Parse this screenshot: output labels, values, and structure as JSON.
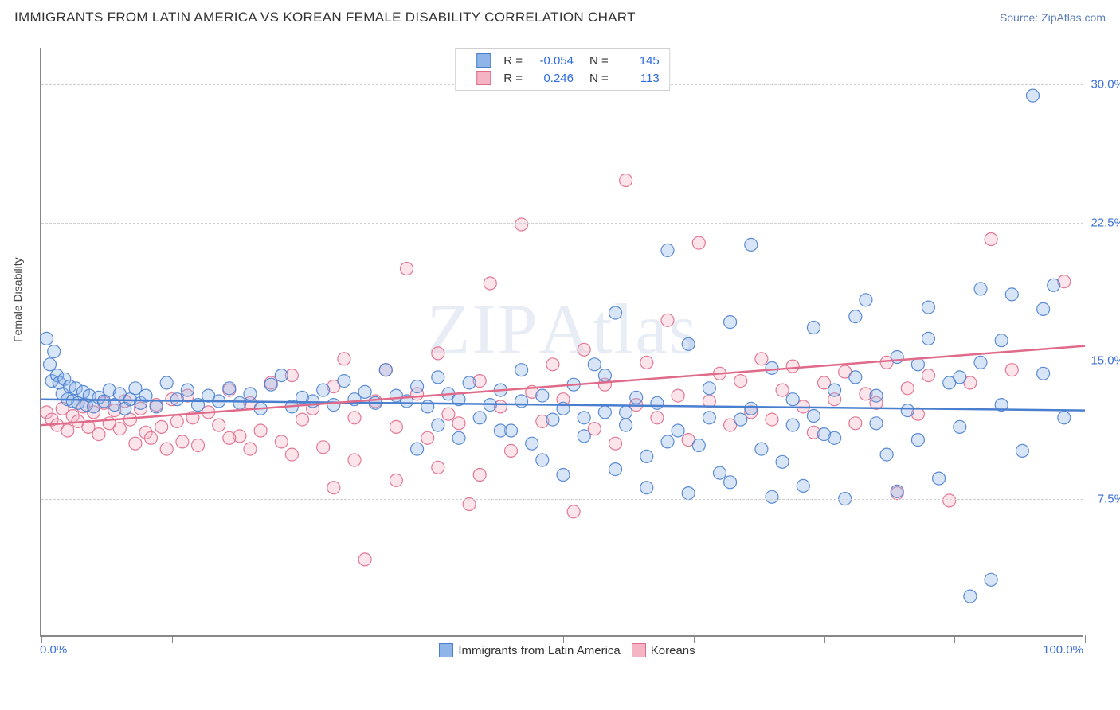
{
  "header": {
    "title": "IMMIGRANTS FROM LATIN AMERICA VS KOREAN FEMALE DISABILITY CORRELATION CHART",
    "source_prefix": "Source: ",
    "source_name": "ZipAtlas.com"
  },
  "watermark": "ZIPAtlas",
  "chart": {
    "type": "scatter",
    "xlim": [
      0,
      100
    ],
    "ylim": [
      0,
      32
    ],
    "ylabel": "Female Disability",
    "x_min_label": "0.0%",
    "x_max_label": "100.0%",
    "yticks": [
      7.5,
      15.0,
      22.5,
      30.0
    ],
    "ytick_labels": [
      "7.5%",
      "15.0%",
      "22.5%",
      "30.0%"
    ],
    "xtick_positions": [
      0,
      12.5,
      25,
      37.5,
      50,
      62.5,
      75,
      87.5,
      100
    ],
    "grid_color": "#d0d0d0",
    "axis_color": "#888888",
    "background_color": "#ffffff",
    "marker_radius": 8,
    "marker_fill_opacity": 0.35,
    "marker_stroke_opacity": 0.9,
    "marker_stroke_width": 1.2,
    "trend_line_width": 2.5,
    "series": [
      {
        "name": "Immigrants from Latin America",
        "color_fill": "#8fb4e8",
        "color_stroke": "#4a7fd0",
        "R": "-0.054",
        "N": "145",
        "trend": {
          "y_at_x0": 12.9,
          "y_at_x100": 12.3
        },
        "points": [
          [
            0.5,
            16.2
          ],
          [
            0.8,
            14.8
          ],
          [
            1,
            13.9
          ],
          [
            1.2,
            15.5
          ],
          [
            1.5,
            14.2
          ],
          [
            1.7,
            13.8
          ],
          [
            2,
            13.2
          ],
          [
            2.2,
            14.0
          ],
          [
            2.5,
            12.9
          ],
          [
            2.7,
            13.6
          ],
          [
            3,
            12.8
          ],
          [
            3.3,
            13.5
          ],
          [
            3.5,
            12.7
          ],
          [
            4,
            13.3
          ],
          [
            4.3,
            12.6
          ],
          [
            4.6,
            13.1
          ],
          [
            5,
            12.5
          ],
          [
            5.5,
            13.0
          ],
          [
            6,
            12.8
          ],
          [
            6.5,
            13.4
          ],
          [
            7,
            12.6
          ],
          [
            7.5,
            13.2
          ],
          [
            8,
            12.4
          ],
          [
            8.5,
            12.9
          ],
          [
            9,
            13.5
          ],
          [
            9.5,
            12.7
          ],
          [
            10,
            13.1
          ],
          [
            11,
            12.5
          ],
          [
            12,
            13.8
          ],
          [
            13,
            12.9
          ],
          [
            14,
            13.4
          ],
          [
            15,
            12.6
          ],
          [
            16,
            13.1
          ],
          [
            17,
            12.8
          ],
          [
            18,
            13.5
          ],
          [
            19,
            12.7
          ],
          [
            20,
            13.2
          ],
          [
            21,
            12.4
          ],
          [
            22,
            13.7
          ],
          [
            23,
            14.2
          ],
          [
            24,
            12.5
          ],
          [
            25,
            13.0
          ],
          [
            26,
            12.8
          ],
          [
            27,
            13.4
          ],
          [
            28,
            12.6
          ],
          [
            29,
            13.9
          ],
          [
            30,
            12.9
          ],
          [
            31,
            13.3
          ],
          [
            32,
            12.7
          ],
          [
            33,
            14.5
          ],
          [
            34,
            13.1
          ],
          [
            35,
            12.8
          ],
          [
            36,
            13.6
          ],
          [
            37,
            12.5
          ],
          [
            38,
            14.1
          ],
          [
            39,
            13.2
          ],
          [
            40,
            12.9
          ],
          [
            41,
            13.8
          ],
          [
            42,
            11.9
          ],
          [
            43,
            12.6
          ],
          [
            44,
            13.4
          ],
          [
            45,
            11.2
          ],
          [
            46,
            12.8
          ],
          [
            47,
            10.5
          ],
          [
            48,
            13.1
          ],
          [
            49,
            11.8
          ],
          [
            50,
            12.4
          ],
          [
            51,
            13.7
          ],
          [
            52,
            10.9
          ],
          [
            53,
            14.8
          ],
          [
            54,
            12.2
          ],
          [
            55,
            17.6
          ],
          [
            56,
            11.5
          ],
          [
            57,
            13.0
          ],
          [
            58,
            9.8
          ],
          [
            59,
            12.7
          ],
          [
            60,
            21.0
          ],
          [
            61,
            11.2
          ],
          [
            62,
            15.9
          ],
          [
            63,
            10.4
          ],
          [
            64,
            13.5
          ],
          [
            65,
            8.9
          ],
          [
            66,
            17.1
          ],
          [
            67,
            11.8
          ],
          [
            68,
            21.3
          ],
          [
            69,
            10.2
          ],
          [
            70,
            14.6
          ],
          [
            71,
            9.5
          ],
          [
            72,
            12.9
          ],
          [
            73,
            8.2
          ],
          [
            74,
            16.8
          ],
          [
            75,
            11.0
          ],
          [
            76,
            13.4
          ],
          [
            77,
            7.5
          ],
          [
            78,
            14.1
          ],
          [
            79,
            18.3
          ],
          [
            80,
            11.6
          ],
          [
            81,
            9.9
          ],
          [
            82,
            15.2
          ],
          [
            83,
            12.3
          ],
          [
            84,
            10.7
          ],
          [
            85,
            17.9
          ],
          [
            86,
            8.6
          ],
          [
            87,
            13.8
          ],
          [
            88,
            11.4
          ],
          [
            89,
            2.2
          ],
          [
            90,
            14.9
          ],
          [
            91,
            3.1
          ],
          [
            92,
            12.6
          ],
          [
            93,
            18.6
          ],
          [
            94,
            10.1
          ],
          [
            95,
            29.4
          ],
          [
            96,
            14.3
          ],
          [
            97,
            19.1
          ],
          [
            98,
            11.9
          ],
          [
            82,
            7.9
          ],
          [
            88,
            14.1
          ],
          [
            78,
            17.4
          ],
          [
            85,
            16.2
          ],
          [
            90,
            18.9
          ],
          [
            55,
            9.1
          ],
          [
            48,
            9.6
          ],
          [
            62,
            7.8
          ],
          [
            70,
            7.6
          ],
          [
            50,
            8.8
          ],
          [
            58,
            8.1
          ],
          [
            66,
            8.4
          ],
          [
            44,
            11.2
          ],
          [
            52,
            11.9
          ],
          [
            60,
            10.6
          ],
          [
            74,
            12.0
          ],
          [
            80,
            13.1
          ],
          [
            84,
            14.8
          ],
          [
            92,
            16.1
          ],
          [
            96,
            17.8
          ],
          [
            68,
            12.4
          ],
          [
            72,
            11.5
          ],
          [
            76,
            10.8
          ],
          [
            64,
            11.9
          ],
          [
            56,
            12.2
          ],
          [
            40,
            10.8
          ],
          [
            38,
            11.5
          ],
          [
            36,
            10.2
          ],
          [
            46,
            14.5
          ],
          [
            54,
            14.2
          ]
        ]
      },
      {
        "name": "Koreans",
        "color_fill": "#f4b4c4",
        "color_stroke": "#e06a8a",
        "R": "0.246",
        "N": "113",
        "trend": {
          "y_at_x0": 11.5,
          "y_at_x100": 15.8
        },
        "points": [
          [
            0.5,
            12.2
          ],
          [
            1,
            11.8
          ],
          [
            1.5,
            11.5
          ],
          [
            2,
            12.4
          ],
          [
            2.5,
            11.2
          ],
          [
            3,
            12.0
          ],
          [
            3.5,
            11.7
          ],
          [
            4,
            12.5
          ],
          [
            4.5,
            11.4
          ],
          [
            5,
            12.2
          ],
          [
            5.5,
            11.0
          ],
          [
            6,
            12.7
          ],
          [
            6.5,
            11.6
          ],
          [
            7,
            12.3
          ],
          [
            7.5,
            11.3
          ],
          [
            8,
            12.8
          ],
          [
            8.5,
            11.8
          ],
          [
            9,
            10.5
          ],
          [
            9.5,
            12.4
          ],
          [
            10,
            11.1
          ],
          [
            10.5,
            10.8
          ],
          [
            11,
            12.6
          ],
          [
            11.5,
            11.4
          ],
          [
            12,
            10.2
          ],
          [
            12.5,
            12.9
          ],
          [
            13,
            11.7
          ],
          [
            13.5,
            10.6
          ],
          [
            14,
            13.1
          ],
          [
            14.5,
            11.9
          ],
          [
            15,
            10.4
          ],
          [
            16,
            12.2
          ],
          [
            17,
            11.5
          ],
          [
            18,
            13.4
          ],
          [
            19,
            10.9
          ],
          [
            20,
            12.7
          ],
          [
            21,
            11.2
          ],
          [
            22,
            13.8
          ],
          [
            23,
            10.6
          ],
          [
            24,
            14.2
          ],
          [
            25,
            11.8
          ],
          [
            26,
            12.4
          ],
          [
            27,
            10.3
          ],
          [
            28,
            13.6
          ],
          [
            29,
            15.1
          ],
          [
            30,
            11.9
          ],
          [
            31,
            4.2
          ],
          [
            32,
            12.8
          ],
          [
            33,
            14.5
          ],
          [
            34,
            11.4
          ],
          [
            35,
            20.0
          ],
          [
            36,
            13.2
          ],
          [
            37,
            10.8
          ],
          [
            38,
            15.4
          ],
          [
            39,
            12.1
          ],
          [
            40,
            11.6
          ],
          [
            41,
            7.2
          ],
          [
            42,
            13.9
          ],
          [
            43,
            19.2
          ],
          [
            44,
            12.5
          ],
          [
            45,
            10.1
          ],
          [
            46,
            22.4
          ],
          [
            47,
            13.3
          ],
          [
            48,
            11.7
          ],
          [
            49,
            14.8
          ],
          [
            50,
            12.9
          ],
          [
            51,
            6.8
          ],
          [
            52,
            15.6
          ],
          [
            53,
            11.3
          ],
          [
            54,
            13.7
          ],
          [
            55,
            10.5
          ],
          [
            56,
            24.8
          ],
          [
            57,
            12.6
          ],
          [
            58,
            14.9
          ],
          [
            59,
            11.9
          ],
          [
            60,
            17.2
          ],
          [
            61,
            13.1
          ],
          [
            62,
            10.7
          ],
          [
            63,
            21.4
          ],
          [
            64,
            12.8
          ],
          [
            65,
            14.3
          ],
          [
            66,
            11.5
          ],
          [
            67,
            13.9
          ],
          [
            68,
            12.2
          ],
          [
            69,
            15.1
          ],
          [
            70,
            11.8
          ],
          [
            71,
            13.4
          ],
          [
            72,
            14.7
          ],
          [
            73,
            12.5
          ],
          [
            74,
            11.1
          ],
          [
            75,
            13.8
          ],
          [
            76,
            12.9
          ],
          [
            77,
            14.4
          ],
          [
            78,
            11.6
          ],
          [
            79,
            13.2
          ],
          [
            80,
            12.7
          ],
          [
            81,
            14.9
          ],
          [
            82,
            7.8
          ],
          [
            83,
            13.5
          ],
          [
            84,
            12.1
          ],
          [
            85,
            14.2
          ],
          [
            87,
            7.4
          ],
          [
            89,
            13.8
          ],
          [
            91,
            21.6
          ],
          [
            93,
            14.5
          ],
          [
            98,
            19.3
          ],
          [
            34,
            8.5
          ],
          [
            38,
            9.2
          ],
          [
            42,
            8.8
          ],
          [
            28,
            8.1
          ],
          [
            30,
            9.6
          ],
          [
            24,
            9.9
          ],
          [
            20,
            10.2
          ],
          [
            18,
            10.8
          ]
        ]
      }
    ],
    "bottom_legend": [
      {
        "label": "Immigrants from Latin America",
        "fill": "#8fb4e8",
        "stroke": "#4a7fd0"
      },
      {
        "label": "Koreans",
        "fill": "#f4b4c4",
        "stroke": "#e06a8a"
      }
    ]
  }
}
